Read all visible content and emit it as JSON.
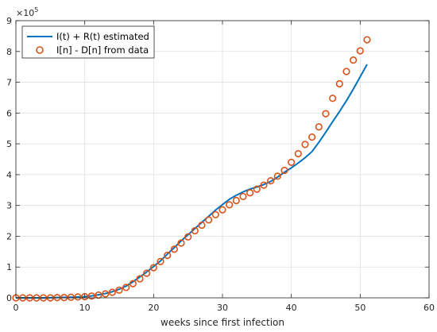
{
  "chart_data": {
    "type": "line",
    "xlabel": "weeks since first infection",
    "ylabel": "",
    "xlim": [
      0,
      60
    ],
    "ylim": [
      0,
      9
    ],
    "xticks": [
      0,
      10,
      20,
      30,
      40,
      50,
      60
    ],
    "yticks": [
      0,
      1,
      2,
      3,
      4,
      5,
      6,
      7,
      8,
      9
    ],
    "y_multiplier_base": "×10",
    "y_multiplier_exp": "5",
    "grid": true,
    "legend_position": "top-left",
    "colors": {
      "line": "#0072BD",
      "markers": "#D95319"
    },
    "series": [
      {
        "name": "I(t) + R(t) estimated",
        "kind": "line",
        "x": [
          0,
          2,
          4,
          6,
          8,
          10,
          11,
          12,
          13,
          14,
          15,
          16,
          17,
          18,
          19,
          20,
          21,
          22,
          23,
          24,
          25,
          26,
          27,
          28,
          29,
          30,
          31,
          32,
          33,
          34,
          35,
          36,
          37,
          38,
          39,
          40,
          41,
          42,
          43,
          44,
          45,
          46,
          47,
          48,
          49,
          50,
          51
        ],
        "y": [
          0.0,
          0.0,
          0.0,
          0.01,
          0.02,
          0.04,
          0.06,
          0.1,
          0.14,
          0.2,
          0.28,
          0.38,
          0.52,
          0.68,
          0.84,
          1.02,
          1.2,
          1.42,
          1.63,
          1.85,
          2.05,
          2.25,
          2.45,
          2.65,
          2.85,
          3.03,
          3.2,
          3.33,
          3.44,
          3.53,
          3.6,
          3.68,
          3.78,
          3.92,
          4.08,
          4.22,
          4.38,
          4.55,
          4.75,
          5.05,
          5.38,
          5.72,
          6.05,
          6.4,
          6.78,
          7.18,
          7.58
        ]
      },
      {
        "name": "I[n] - D[n] from data",
        "kind": "markers",
        "x": [
          0,
          1,
          2,
          3,
          4,
          5,
          6,
          7,
          8,
          9,
          10,
          11,
          12,
          13,
          14,
          15,
          16,
          17,
          18,
          19,
          20,
          21,
          22,
          23,
          24,
          25,
          26,
          27,
          28,
          29,
          30,
          31,
          32,
          33,
          34,
          35,
          36,
          37,
          38,
          39,
          40,
          41,
          42,
          43,
          44,
          45,
          46,
          47,
          48,
          49,
          50,
          51
        ],
        "y": [
          0.0,
          0.0,
          0.0,
          0.0,
          0.0,
          0.0,
          0.01,
          0.01,
          0.02,
          0.03,
          0.04,
          0.06,
          0.09,
          0.13,
          0.18,
          0.25,
          0.34,
          0.46,
          0.62,
          0.8,
          0.98,
          1.18,
          1.38,
          1.58,
          1.78,
          1.98,
          2.18,
          2.36,
          2.53,
          2.7,
          2.86,
          3.02,
          3.16,
          3.29,
          3.41,
          3.53,
          3.66,
          3.8,
          3.95,
          4.14,
          4.4,
          4.68,
          4.98,
          5.22,
          5.55,
          5.98,
          6.48,
          6.95,
          7.35,
          7.72,
          8.02,
          8.38
        ]
      }
    ]
  }
}
